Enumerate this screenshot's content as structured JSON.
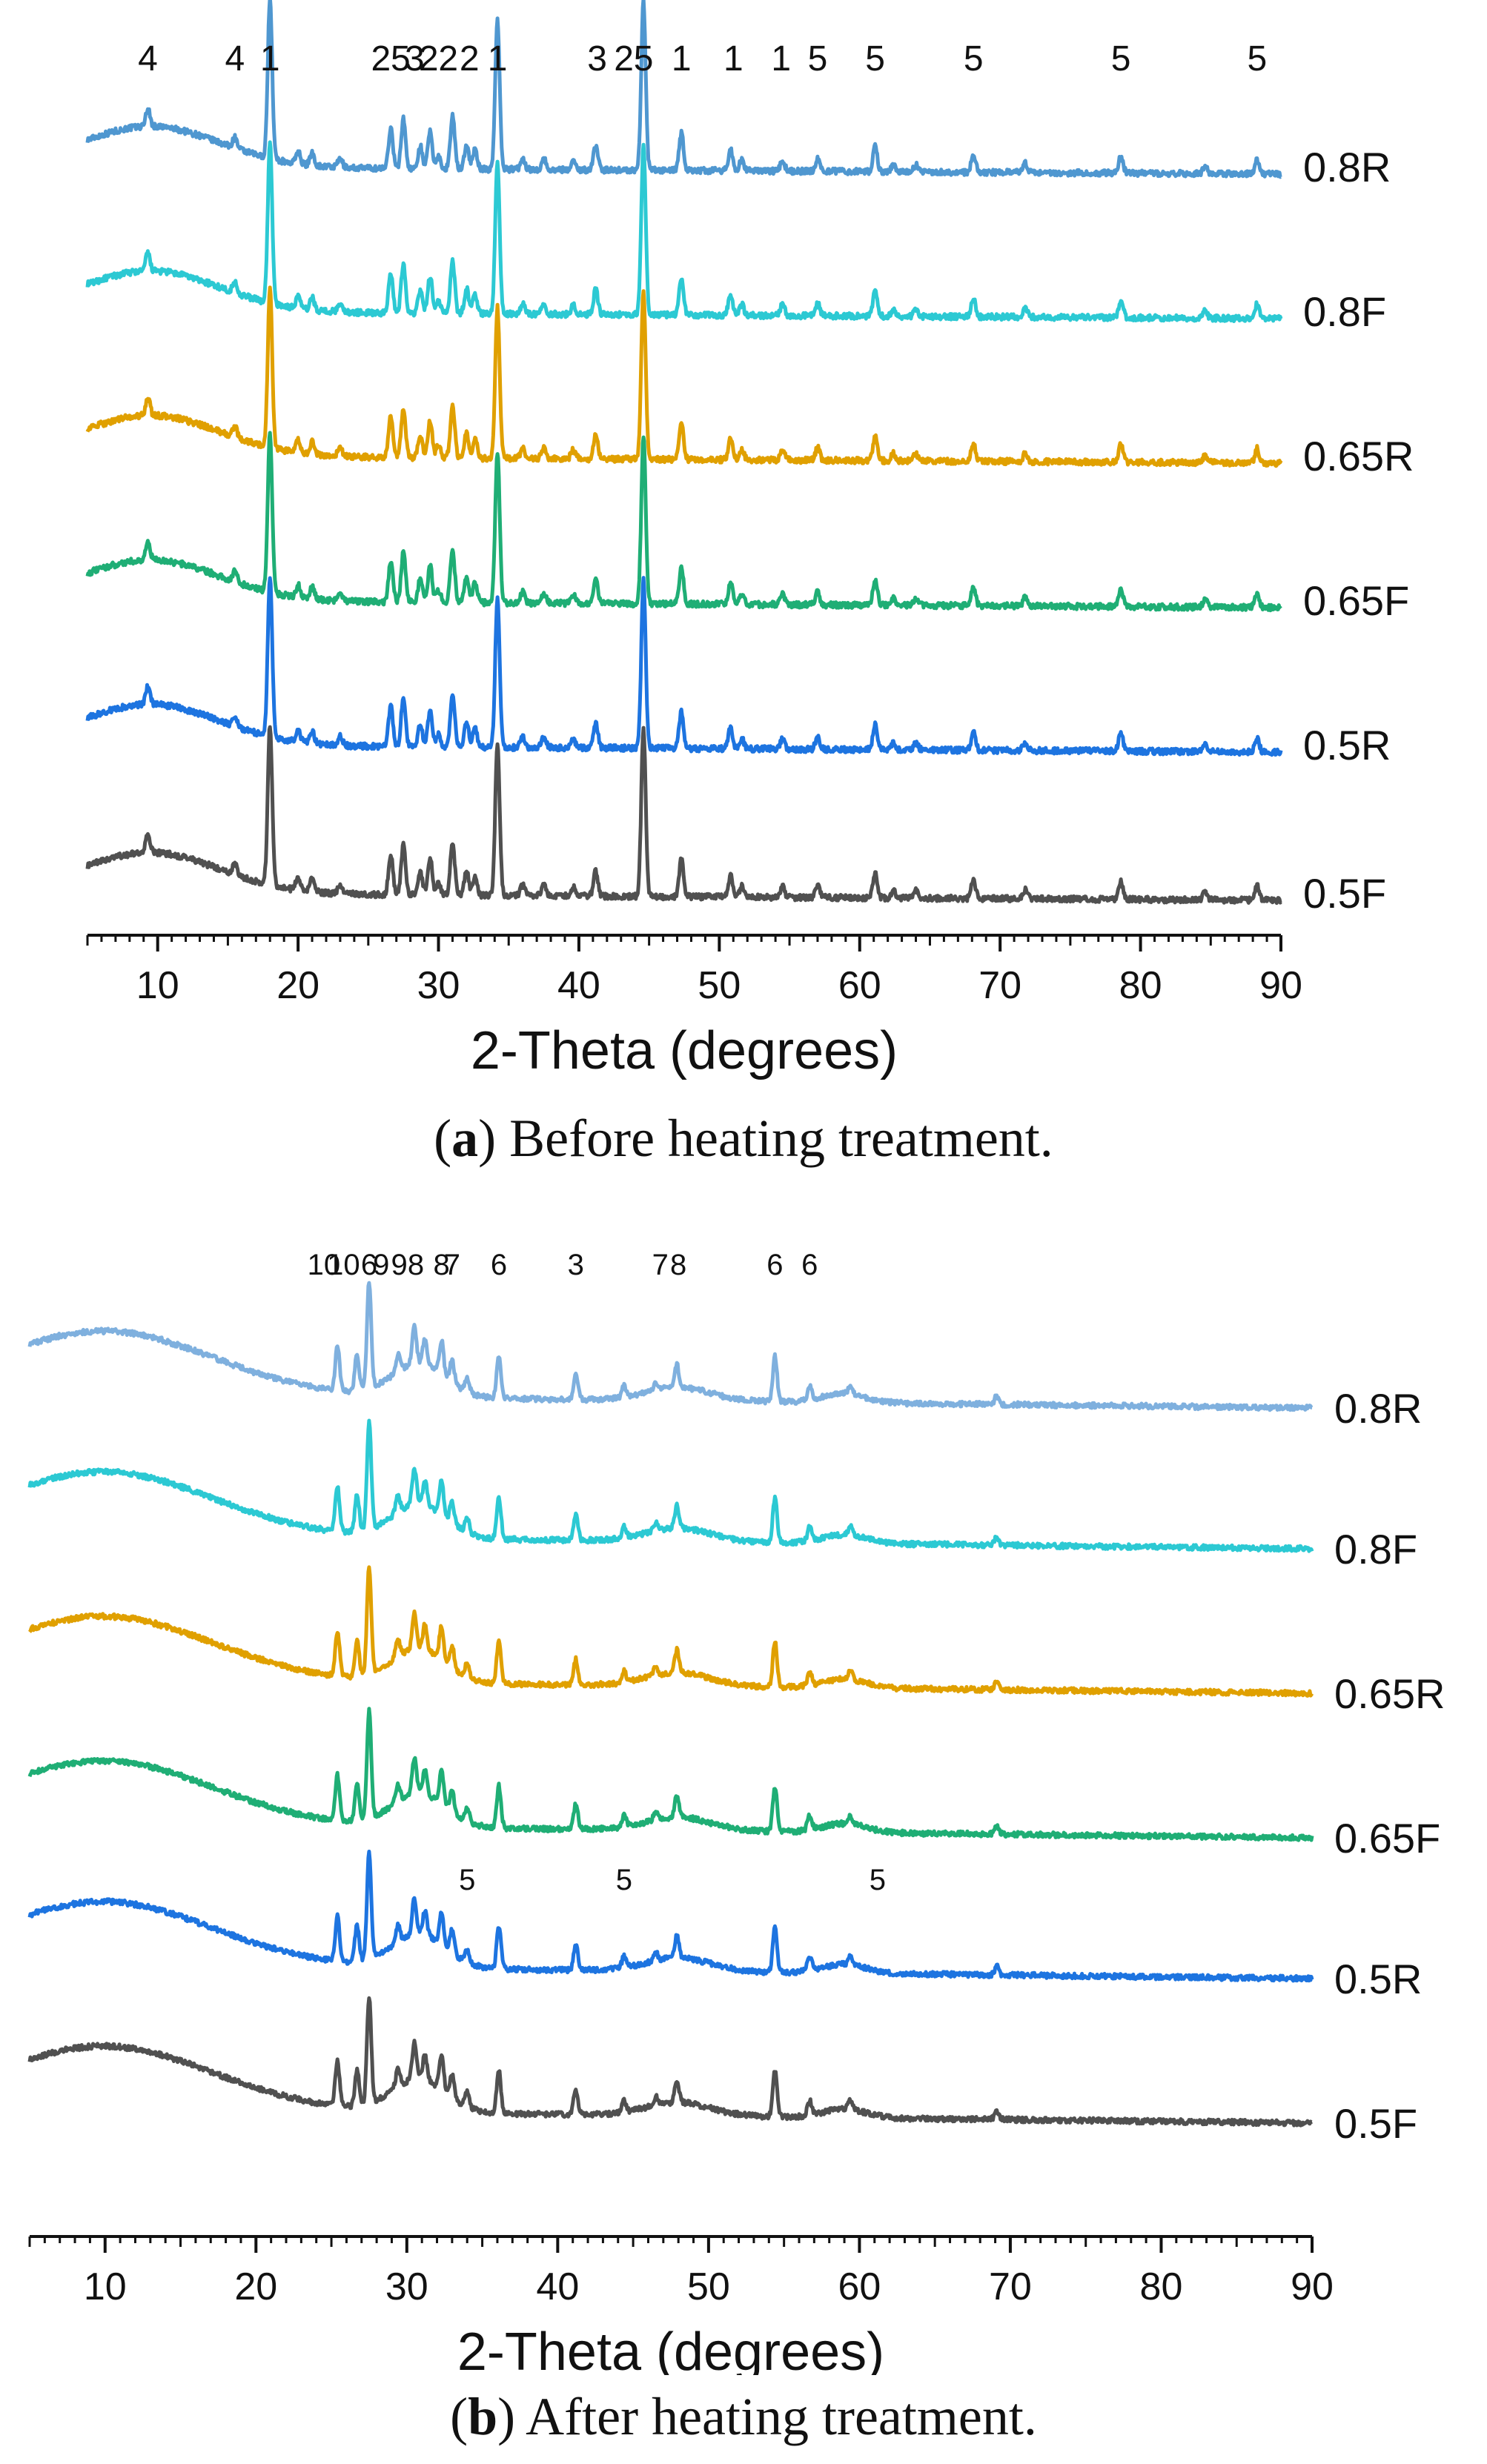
{
  "panels": [
    {
      "id": "a",
      "caption_letter": "a",
      "caption_text": ") Before heating treatment.",
      "chart_data": {
        "type": "line",
        "title": "",
        "xlabel": "2-Theta (degrees)",
        "ylabel": "",
        "xlim": [
          5,
          90
        ],
        "xticks": [
          10,
          20,
          30,
          40,
          50,
          60,
          70,
          80,
          90
        ],
        "series": [
          {
            "name": "0.8R",
            "color": "#4f97d0"
          },
          {
            "name": "0.8F",
            "color": "#2cc9d3"
          },
          {
            "name": "0.65R",
            "color": "#e0a000"
          },
          {
            "name": "0.65F",
            "color": "#1fae75"
          },
          {
            "name": "0.5R",
            "color": "#1d74e0"
          },
          {
            "name": "0.5F",
            "color": "#505050"
          }
        ],
        "peaks": [
          [
            9.3,
            1.0
          ],
          [
            15.5,
            0.6
          ],
          [
            18.0,
            9.0
          ],
          [
            20.0,
            0.7
          ],
          [
            21.0,
            0.7
          ],
          [
            23.0,
            0.5
          ],
          [
            26.6,
            2.3
          ],
          [
            27.5,
            2.8
          ],
          [
            28.7,
            1.3
          ],
          [
            29.4,
            2.1
          ],
          [
            30.0,
            0.7
          ],
          [
            31.0,
            3.0
          ],
          [
            32.0,
            1.4
          ],
          [
            32.6,
            1.1
          ],
          [
            34.2,
            8.5
          ],
          [
            36.0,
            0.6
          ],
          [
            37.5,
            0.6
          ],
          [
            39.6,
            0.5
          ],
          [
            41.2,
            1.4
          ],
          [
            44.6,
            9.5
          ],
          [
            47.3,
            2.1
          ],
          [
            50.8,
            1.2
          ],
          [
            51.6,
            0.6
          ],
          [
            54.5,
            0.6
          ],
          [
            57.0,
            0.7
          ],
          [
            61.1,
            1.4
          ],
          [
            62.4,
            0.4
          ],
          [
            64.0,
            0.4
          ],
          [
            68.1,
            1.0
          ],
          [
            71.8,
            0.5
          ],
          [
            78.6,
            1.0
          ],
          [
            84.6,
            0.4
          ],
          [
            88.3,
            0.8
          ]
        ],
        "peak_labels": [
          {
            "x": 9.3,
            "label": "4"
          },
          {
            "x": 15.5,
            "label": "4"
          },
          {
            "x": 18.0,
            "label": "1"
          },
          {
            "x": 25.9,
            "label": "2"
          },
          {
            "x": 27.3,
            "label": "5"
          },
          {
            "x": 28.3,
            "label": "3"
          },
          {
            "x": 29.3,
            "label": "2"
          },
          {
            "x": 30.7,
            "label": "2"
          },
          {
            "x": 32.2,
            "label": "2"
          },
          {
            "x": 34.2,
            "label": "1"
          },
          {
            "x": 41.3,
            "label": "3"
          },
          {
            "x": 43.2,
            "label": "2"
          },
          {
            "x": 44.6,
            "label": "5"
          },
          {
            "x": 47.3,
            "label": "1"
          },
          {
            "x": 51.0,
            "label": "1"
          },
          {
            "x": 54.4,
            "label": "1"
          },
          {
            "x": 57.0,
            "label": "5"
          },
          {
            "x": 61.1,
            "label": "5"
          },
          {
            "x": 68.1,
            "label": "5"
          },
          {
            "x": 78.6,
            "label": "5"
          },
          {
            "x": 88.3,
            "label": "5"
          }
        ]
      }
    },
    {
      "id": "b",
      "caption_letter": "b",
      "caption_text": ") After heating treatment.",
      "chart_data": {
        "type": "line",
        "title": "",
        "xlabel": "2-Theta (degrees)",
        "ylabel": "",
        "xlim": [
          5,
          90
        ],
        "xticks": [
          10,
          20,
          30,
          40,
          50,
          60,
          70,
          80,
          90
        ],
        "series": [
          {
            "name": "0.8R",
            "color": "#7fb0de"
          },
          {
            "name": "0.8F",
            "color": "#2cc9d3"
          },
          {
            "name": "0.65R",
            "color": "#e0a000"
          },
          {
            "name": "0.65F",
            "color": "#1fae75"
          },
          {
            "name": "0.5R",
            "color": "#1d74e0"
          },
          {
            "name": "0.5F",
            "color": "#505050"
          }
        ],
        "peaks": [
          [
            25.4,
            1.6
          ],
          [
            26.7,
            1.3
          ],
          [
            27.5,
            3.8
          ],
          [
            29.4,
            0.6
          ],
          [
            30.5,
            1.3
          ],
          [
            31.2,
            0.9
          ],
          [
            32.3,
            1.2
          ],
          [
            33.0,
            0.8
          ],
          [
            34.0,
            0.5
          ],
          [
            36.1,
            1.5
          ],
          [
            41.2,
            0.9
          ],
          [
            44.4,
            0.4
          ],
          [
            46.5,
            0.3
          ],
          [
            47.9,
            0.8
          ],
          [
            54.4,
            1.6
          ],
          [
            56.7,
            0.5
          ],
          [
            59.4,
            0.3
          ],
          [
            69.1,
            0.3
          ]
        ],
        "peak_labels": [
          {
            "x": 24.5,
            "label": "10"
          },
          {
            "x": 25.8,
            "label": "10"
          },
          {
            "x": 27.5,
            "label": "6"
          },
          {
            "x": 28.3,
            "label": "9"
          },
          {
            "x": 29.5,
            "label": "9"
          },
          {
            "x": 30.6,
            "label": "8"
          },
          {
            "x": 32.3,
            "label": "8"
          },
          {
            "x": 33.0,
            "label": "7"
          },
          {
            "x": 36.1,
            "label": "6"
          },
          {
            "x": 41.2,
            "label": "3"
          },
          {
            "x": 46.8,
            "label": "7"
          },
          {
            "x": 48.0,
            "label": "8"
          },
          {
            "x": 54.4,
            "label": "6"
          },
          {
            "x": 56.7,
            "label": "6"
          }
        ],
        "extra_labels_05": [
          {
            "x": 44.4,
            "label": "5"
          },
          {
            "x": 61.2,
            "label": "5"
          },
          {
            "x": 34.0,
            "label": "5"
          }
        ]
      }
    }
  ]
}
